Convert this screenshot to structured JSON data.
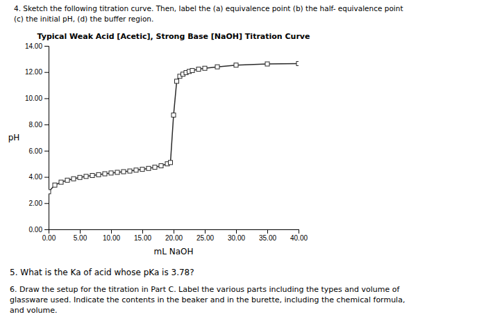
{
  "chart_data": {
    "type": "line",
    "title": "Typical Weak Acid [Acetic], Strong Base [NaOH] Titration Curve",
    "x_label": "mL NaOH",
    "y_label": "pH",
    "annotations": [
      "4. Sketch the following titration curve.  Then, label the (a) equivalence point (b) the half- equivalence point",
      "(c) the initial pH, (d) the buffer region.",
      "5.  What is the Ka of acid whose pKa is 3.78?",
      "6.  Draw the setup for the titration in Part C.  Label the various parts including the types and volume of\nglassware used.  Indicate the contents in the beaker and in the burette, including the chemical formula,\nand volume."
    ],
    "x": [
      0.0,
      1.0,
      2.0,
      3.0,
      4.0,
      5.0,
      6.0,
      7.0,
      8.0,
      9.0,
      10.0,
      11.0,
      12.0,
      13.0,
      14.0,
      15.0,
      16.0,
      17.0,
      18.0,
      19.0,
      19.5,
      20.0,
      20.5,
      21.0,
      21.5,
      22.0,
      22.5,
      23.0,
      24.0,
      25.0,
      27.0,
      30.0,
      35.0,
      40.0
    ],
    "series": [
      {
        "values": [
          2.87,
          3.38,
          3.6,
          3.75,
          3.86,
          3.96,
          4.04,
          4.11,
          4.17,
          4.24,
          4.3,
          4.35,
          4.4,
          4.45,
          4.52,
          4.58,
          4.65,
          4.74,
          4.85,
          5.0,
          5.1,
          8.72,
          11.3,
          11.68,
          11.84,
          11.96,
          12.05,
          12.12,
          12.22,
          12.29,
          12.4,
          12.53,
          12.62,
          12.65
        ],
        "color": "#2a2a2a",
        "marker": "square"
      }
    ],
    "xlim": [
      0,
      40
    ],
    "ylim": [
      0,
      14
    ],
    "xticks": [
      {
        "value": 0.0,
        "label": "0.00"
      },
      {
        "value": 5.0,
        "label": "5.00"
      },
      {
        "value": 10.0,
        "label": "10.00"
      },
      {
        "value": 15.0,
        "label": "15.00"
      },
      {
        "value": 20.0,
        "label": "20.00"
      },
      {
        "value": 25.0,
        "label": "25.00"
      },
      {
        "value": 30.0,
        "label": "30.00"
      },
      {
        "value": 35.0,
        "label": "35.00"
      },
      {
        "value": 40.0,
        "label": "40.00"
      }
    ],
    "yticks": [
      {
        "value": 0.0,
        "label": "0.00"
      },
      {
        "value": 2.0,
        "label": "2.00"
      },
      {
        "value": 4.0,
        "label": "4.00"
      },
      {
        "value": 6.0,
        "label": "6.00"
      },
      {
        "value": 8.0,
        "label": "8.00"
      },
      {
        "value": 10.0,
        "label": "10.00"
      },
      {
        "value": 12.0,
        "label": "12.00"
      },
      {
        "value": 14.0,
        "label": "14.00"
      }
    ],
    "grid": false
  }
}
